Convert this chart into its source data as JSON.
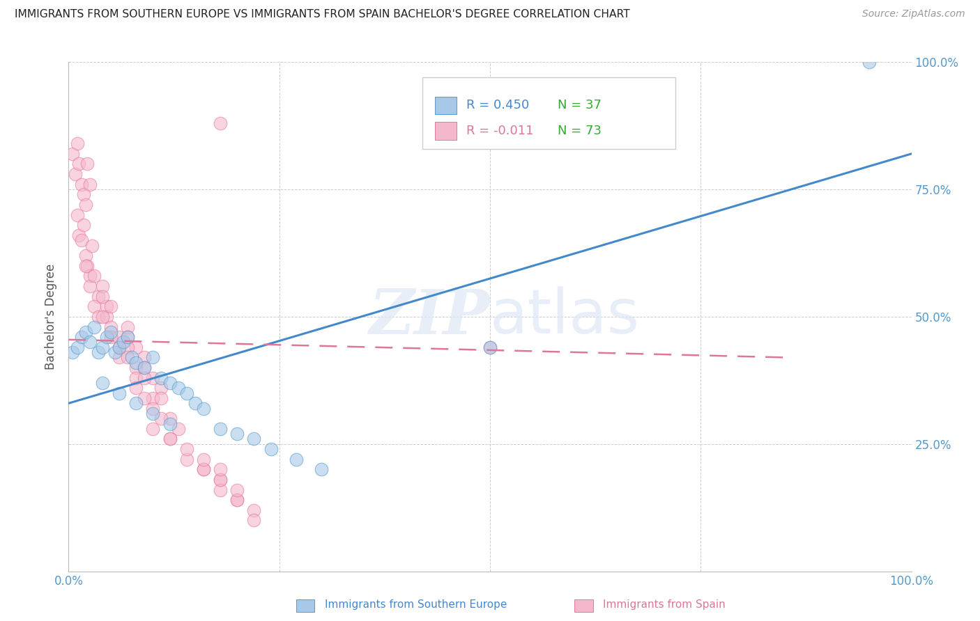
{
  "title": "IMMIGRANTS FROM SOUTHERN EUROPE VS IMMIGRANTS FROM SPAIN BACHELOR'S DEGREE CORRELATION CHART",
  "source": "Source: ZipAtlas.com",
  "ylabel": "Bachelor's Degree",
  "watermark": "ZIPatlas",
  "xlim": [
    0,
    1.0
  ],
  "ylim": [
    0,
    1.0
  ],
  "xticks": [
    0.0,
    0.25,
    0.5,
    0.75,
    1.0
  ],
  "yticks": [
    0.0,
    0.25,
    0.5,
    0.75,
    1.0
  ],
  "blue_color": "#a8c8e8",
  "pink_color": "#f4b8cc",
  "blue_edge_color": "#5599cc",
  "pink_edge_color": "#e87898",
  "blue_line_color": "#4488cc",
  "pink_line_color": "#dd7799",
  "tick_color": "#5599cc",
  "grid_color": "#cccccc",
  "background_color": "#ffffff",
  "blue_scatter_x": [
    0.005,
    0.01,
    0.015,
    0.02,
    0.025,
    0.03,
    0.035,
    0.04,
    0.045,
    0.05,
    0.055,
    0.06,
    0.065,
    0.07,
    0.075,
    0.08,
    0.09,
    0.1,
    0.11,
    0.12,
    0.13,
    0.14,
    0.15,
    0.16,
    0.18,
    0.2,
    0.22,
    0.24,
    0.27,
    0.3,
    0.04,
    0.06,
    0.08,
    0.1,
    0.12,
    0.95,
    0.5
  ],
  "blue_scatter_y": [
    0.43,
    0.44,
    0.46,
    0.47,
    0.45,
    0.48,
    0.43,
    0.44,
    0.46,
    0.47,
    0.43,
    0.44,
    0.45,
    0.46,
    0.42,
    0.41,
    0.4,
    0.42,
    0.38,
    0.37,
    0.36,
    0.35,
    0.33,
    0.32,
    0.28,
    0.27,
    0.26,
    0.24,
    0.22,
    0.2,
    0.37,
    0.35,
    0.33,
    0.31,
    0.29,
    1.0,
    0.44
  ],
  "pink_scatter_x": [
    0.005,
    0.008,
    0.01,
    0.012,
    0.015,
    0.018,
    0.02,
    0.022,
    0.025,
    0.01,
    0.012,
    0.015,
    0.018,
    0.02,
    0.022,
    0.025,
    0.028,
    0.02,
    0.025,
    0.03,
    0.035,
    0.04,
    0.045,
    0.03,
    0.035,
    0.04,
    0.045,
    0.05,
    0.04,
    0.05,
    0.06,
    0.07,
    0.05,
    0.06,
    0.07,
    0.08,
    0.06,
    0.07,
    0.08,
    0.09,
    0.07,
    0.08,
    0.09,
    0.1,
    0.08,
    0.09,
    0.1,
    0.11,
    0.09,
    0.1,
    0.11,
    0.12,
    0.1,
    0.11,
    0.12,
    0.13,
    0.12,
    0.14,
    0.16,
    0.18,
    0.14,
    0.16,
    0.18,
    0.2,
    0.16,
    0.18,
    0.2,
    0.22,
    0.18,
    0.2,
    0.22,
    0.5,
    0.18
  ],
  "pink_scatter_y": [
    0.82,
    0.78,
    0.84,
    0.8,
    0.76,
    0.74,
    0.72,
    0.8,
    0.76,
    0.7,
    0.66,
    0.65,
    0.68,
    0.62,
    0.6,
    0.58,
    0.64,
    0.6,
    0.56,
    0.58,
    0.54,
    0.56,
    0.52,
    0.52,
    0.5,
    0.54,
    0.5,
    0.52,
    0.5,
    0.48,
    0.46,
    0.48,
    0.46,
    0.44,
    0.46,
    0.44,
    0.42,
    0.44,
    0.4,
    0.42,
    0.42,
    0.38,
    0.4,
    0.38,
    0.36,
    0.38,
    0.34,
    0.36,
    0.34,
    0.32,
    0.34,
    0.3,
    0.28,
    0.3,
    0.26,
    0.28,
    0.26,
    0.22,
    0.2,
    0.18,
    0.24,
    0.2,
    0.16,
    0.14,
    0.22,
    0.18,
    0.14,
    0.12,
    0.2,
    0.16,
    0.1,
    0.44,
    0.88
  ],
  "blue_trendline_x": [
    0.0,
    1.0
  ],
  "blue_trendline_y": [
    0.33,
    0.82
  ],
  "pink_trendline_x": [
    0.0,
    0.85
  ],
  "pink_trendline_y": [
    0.455,
    0.42
  ]
}
